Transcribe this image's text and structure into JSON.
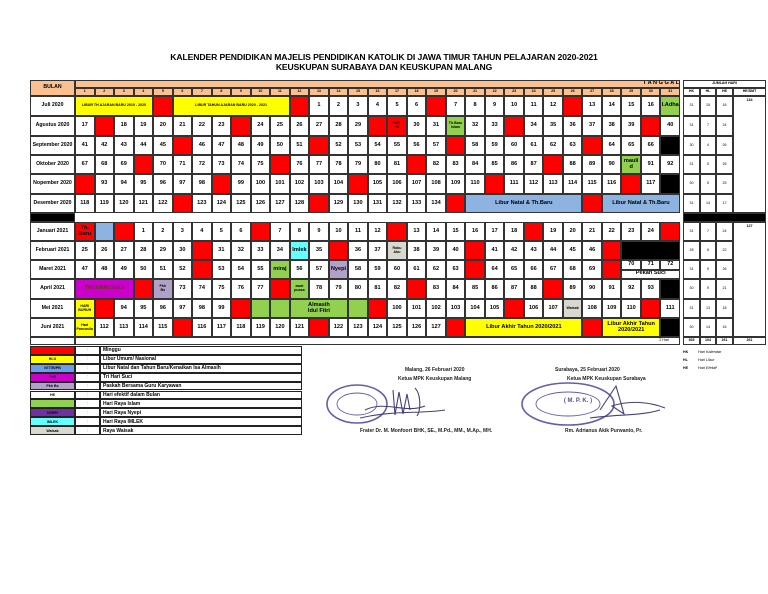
{
  "title": {
    "line1": "KALENDER PENDIDIKAN MAJELIS PENDIDIKAN KATOLIK DI JAWA TIMUR TAHUN PELAJARAN 2020-2021",
    "line2": "KEUSKUPAN SURABAYA DAN KEUSKUPAN MALANG"
  },
  "header": {
    "bulan": "BULAN",
    "tanggal": "T A N G G A L",
    "days": [
      "1",
      "2",
      "3",
      "4",
      "5",
      "6",
      "7",
      "8",
      "9",
      "10",
      "11",
      "12",
      "13",
      "14",
      "15",
      "16",
      "17",
      "18",
      "19",
      "20",
      "21",
      "22",
      "23",
      "24",
      "25",
      "26",
      "27",
      "28",
      "29",
      "30",
      "31"
    ],
    "jumlah_hari": "JUMLAH HARI",
    "cols": [
      "HK",
      "HL",
      "HE",
      "HE/SMT"
    ]
  },
  "colors": {
    "w": "#ffffff",
    "r": "#ff0000",
    "y": "#ffff00",
    "b": "#8db3e2",
    "g": "#92d050",
    "k": "#000000",
    "m": "#cc00cc",
    "l": "#b1a0c7",
    "p": "#7030a0",
    "c": "#66ffff",
    "s": "#d8d8cf",
    "o": "#fac090",
    "lb": "#6d9eeb"
  },
  "months": [
    {
      "name": "Juli 2020",
      "hk": "31",
      "hl": "15",
      "he": "16",
      "cells": [
        {
          "t": "LIBUR TH AJARAN BARU 2019 - 2020",
          "c": "y",
          "s": 4,
          "sm": 1
        },
        "R",
        {
          "t": "LIBUR TAHUN AJARAN BARU 2020 - 2021",
          "c": "y",
          "s": 6,
          "sm": 1
        },
        "R",
        "1",
        "2",
        "3",
        "4",
        "5",
        "6",
        "R",
        "7",
        "8",
        "9",
        "10",
        "11",
        "12",
        "R",
        "13",
        "14",
        "15",
        "16",
        {
          "t": "I.Adha",
          "c": "g"
        }
      ]
    },
    {
      "name": "Agustus 2020",
      "hk": "31",
      "hl": "7",
      "he": "24",
      "cells": [
        "17",
        "R",
        "18",
        "19",
        "20",
        "21",
        "22",
        "23",
        "R",
        "24",
        "25",
        "26",
        "27",
        "28",
        "29",
        "R",
        {
          "t": "HUT\nRI",
          "c": "r",
          "sm": 1
        },
        "30",
        "31",
        {
          "t": "Th.Baru\nIslam",
          "c": "g",
          "sm": 1
        },
        "32",
        "33",
        "R",
        "34",
        "35",
        "36",
        "37",
        "38",
        "39",
        "R",
        "40"
      ]
    },
    {
      "name": "September 2020",
      "hk": "30",
      "hl": "4",
      "he": "26",
      "cells": [
        "41",
        "42",
        "43",
        "44",
        "45",
        "R",
        "46",
        "47",
        "48",
        "49",
        "50",
        "51",
        "R",
        "52",
        "53",
        "54",
        "55",
        "56",
        "57",
        "R",
        "58",
        "59",
        "60",
        "61",
        "62",
        "63",
        "R",
        "64",
        "65",
        "66",
        "K"
      ]
    },
    {
      "name": "Oktober 2020",
      "hk": "31",
      "hl": "5",
      "he": "26",
      "cells": [
        "67",
        "68",
        "69",
        "R",
        "70",
        "71",
        "72",
        "73",
        "74",
        "75",
        "R",
        "76",
        "77",
        "78",
        "79",
        "80",
        "81",
        "R",
        "82",
        "83",
        "84",
        "85",
        "86",
        "87",
        "R",
        "88",
        "89",
        "90",
        {
          "t": "mauli\nd",
          "c": "g"
        },
        "91",
        "92"
      ]
    },
    {
      "name": "Nopember 2020",
      "hk": "30",
      "hl": "5",
      "he": "25",
      "cells": [
        "R",
        "93",
        "94",
        "95",
        "96",
        "97",
        "98",
        "R",
        "99",
        "100",
        "101",
        "102",
        "103",
        "104",
        "R",
        "105",
        "106",
        "107",
        "108",
        "109",
        "110",
        "R",
        "111",
        "112",
        "113",
        "114",
        "115",
        "116",
        "R",
        "117",
        "K"
      ]
    },
    {
      "name": "Desember 2020",
      "hk": "31",
      "hl": "14",
      "he": "17",
      "cells": [
        "118",
        "119",
        "120",
        "121",
        "122",
        "R",
        "123",
        "124",
        "125",
        "126",
        "127",
        "128",
        "R",
        "129",
        "130",
        "131",
        "132",
        "133",
        "134",
        "R",
        {
          "t": "Libur Natal & Th.Baru",
          "c": "b",
          "s": 6
        },
        "R",
        {
          "t": "Libur Natal & Th.Baru",
          "c": "b",
          "s": 4
        }
      ]
    },
    {
      "name": "Januari 2021",
      "hk": "31",
      "hl": "7",
      "he": "24",
      "cells": [
        {
          "t": "Th.\nBaru",
          "c": "r"
        },
        {
          "t": "",
          "c": "b"
        },
        "R",
        "1",
        "2",
        "3",
        "4",
        "5",
        "6",
        "R",
        "7",
        "8",
        "9",
        "10",
        "11",
        "12",
        "R",
        "13",
        "14",
        "15",
        "16",
        "17",
        "18",
        "R",
        "19",
        "20",
        "21",
        "22",
        "23",
        "24",
        "R"
      ]
    },
    {
      "name": "Februari 2021",
      "hk": "28",
      "hl": "6",
      "he": "22",
      "cells": [
        "25",
        "26",
        "27",
        "28",
        "29",
        "30",
        "R",
        "31",
        "32",
        "33",
        "34",
        {
          "t": "Imlek",
          "c": "c"
        },
        "35",
        "R",
        "36",
        "37",
        {
          "t": "Rabu\nAbu",
          "c": "s",
          "sm": 1
        },
        "38",
        "39",
        "40",
        "R",
        "41",
        "42",
        "43",
        "44",
        "45",
        "46",
        "R",
        {
          "t": "",
          "c": "k",
          "s": 3
        }
      ]
    },
    {
      "name": "Maret 2021",
      "hk": "31",
      "hl": "5",
      "he": "26",
      "cells": [
        "47",
        "48",
        "49",
        "50",
        "51",
        "52",
        "R",
        "53",
        "54",
        "55",
        {
          "t": "miraj",
          "c": "g"
        },
        "56",
        "57",
        {
          "t": "Nyepi",
          "c": "l"
        },
        "58",
        "59",
        "60",
        "61",
        "62",
        "63",
        "R",
        "64",
        "65",
        "66",
        "67",
        "68",
        "69",
        "R",
        {
          "ps": 1,
          "n": [
            "70",
            "71",
            "72"
          ],
          "t": "Pekan Suci",
          "s": 3
        }
      ]
    },
    {
      "name": "April 2021",
      "hk": "30",
      "hl": "9",
      "he": "21",
      "cells": [
        {
          "t": "TRI HARI SUCI",
          "c": "m",
          "s": 3
        },
        "R",
        {
          "t": "Pkh\nBs",
          "c": "l",
          "sm": 1
        },
        "73",
        "74",
        "75",
        "76",
        "77",
        "R",
        {
          "t": "awal\npuasa",
          "c": "g",
          "sm": 1
        },
        "78",
        "79",
        "80",
        "81",
        "82",
        "R",
        "83",
        "84",
        "85",
        "86",
        "87",
        "88",
        "R",
        "89",
        "90",
        "91",
        "92",
        "93",
        "K"
      ]
    },
    {
      "name": "Mei 2021",
      "hk": "31",
      "hl": "13",
      "he": "18",
      "cells": [
        {
          "t": "HARI\nBURUH",
          "c": "y",
          "sm": 1
        },
        "R",
        "94",
        "95",
        "96",
        "97",
        "98",
        "99",
        "R",
        {
          "t": "",
          "c": "g"
        },
        {
          "t": "",
          "c": "g"
        },
        {
          "t": "Almasih\nIdul Fitri",
          "c": "g",
          "s": 3
        },
        {
          "t": "",
          "c": "g"
        },
        "R",
        "100",
        "101",
        "102",
        "103",
        "104",
        "105",
        "R",
        "106",
        "107",
        {
          "t": "Waisak",
          "c": "s",
          "sm": 1
        },
        "108",
        "109",
        "110",
        "R",
        "111"
      ]
    },
    {
      "name": "Juni 2021",
      "hk": "30",
      "hl": "14",
      "he": "16",
      "cells": [
        {
          "t": "Hari\nPancasila",
          "c": "y",
          "sm": 1
        },
        "112",
        "113",
        "114",
        "115",
        "R",
        "116",
        "117",
        "118",
        "119",
        "120",
        "121",
        "R",
        "122",
        "123",
        "124",
        "125",
        "126",
        "127",
        "R",
        {
          "t": "Libur Akhir Tahun 2020/2021",
          "c": "y",
          "s": 6
        },
        "R",
        {
          "t": "Libur Akhir Tahun\n2020/2021",
          "c": "y",
          "s": 3
        },
        "K"
      ]
    }
  ],
  "semester_totals": [
    "134",
    "127"
  ],
  "sum_row": {
    "label": "Σ Hari",
    "hk": "365",
    "hl": "104",
    "he": "261",
    "he_smt": "261"
  },
  "notes": [
    {
      "code": "HK",
      "text": "Hari Kalendar"
    },
    {
      "code": "HL",
      "text": "Hari Libur"
    },
    {
      "code": "HE",
      "text": "Hari Efektif"
    }
  ],
  "legend": [
    {
      "code": "",
      "color": "r",
      "sep": ":",
      "text": "Minggu"
    },
    {
      "code": "HLU",
      "color": "y",
      "sep": ":",
      "text": "Libur Umum/ Nasional"
    },
    {
      "code": "NT/TB/PB",
      "color": "lb",
      "sep": ":",
      "text": "Libur Natal dan Tahun Baru/Kenaikan Isa Almasih"
    },
    {
      "code": "THS",
      "color": "m",
      "sep": ":",
      "text": "Tri Hari Suci"
    },
    {
      "code": "Pkh Bs",
      "color": "l",
      "sep": ":",
      "text": "Paskah Bersama Guru Karyawan"
    },
    {
      "code": "HE",
      "color": "w",
      "sep": ":",
      "text": "Hari efektif dalam Bulan"
    },
    {
      "code": "",
      "color": "g",
      "sep": ":",
      "text": "Hari Raya Islam"
    },
    {
      "code": "NYEPI",
      "color": "p",
      "sep": ":",
      "text": "Hari Raya Nyepi"
    },
    {
      "code": "IMLEK",
      "color": "c",
      "sep": ":",
      "text": "Hari Raya IMLEK"
    },
    {
      "code": "Waisak",
      "color": "s",
      "sep": ":",
      "text": "Raya Waisak"
    }
  ],
  "signatures": {
    "malang": {
      "place_date": "Malang,  26 Februari 2020",
      "role": "Ketua MPK Keuskupan Malang",
      "name": "Frater Dr. M. Monfoort BHK, SE., M.Pd., MM., M.Ap., MH."
    },
    "surabaya": {
      "place_date": "Surabaya,  25 Februari 2020",
      "role": "Ketua MPK Keuskupan Surabaya",
      "name": "Rm. Adrianus Akik Purwanto, Pr.",
      "stamp": "( M. P. K. )"
    }
  }
}
